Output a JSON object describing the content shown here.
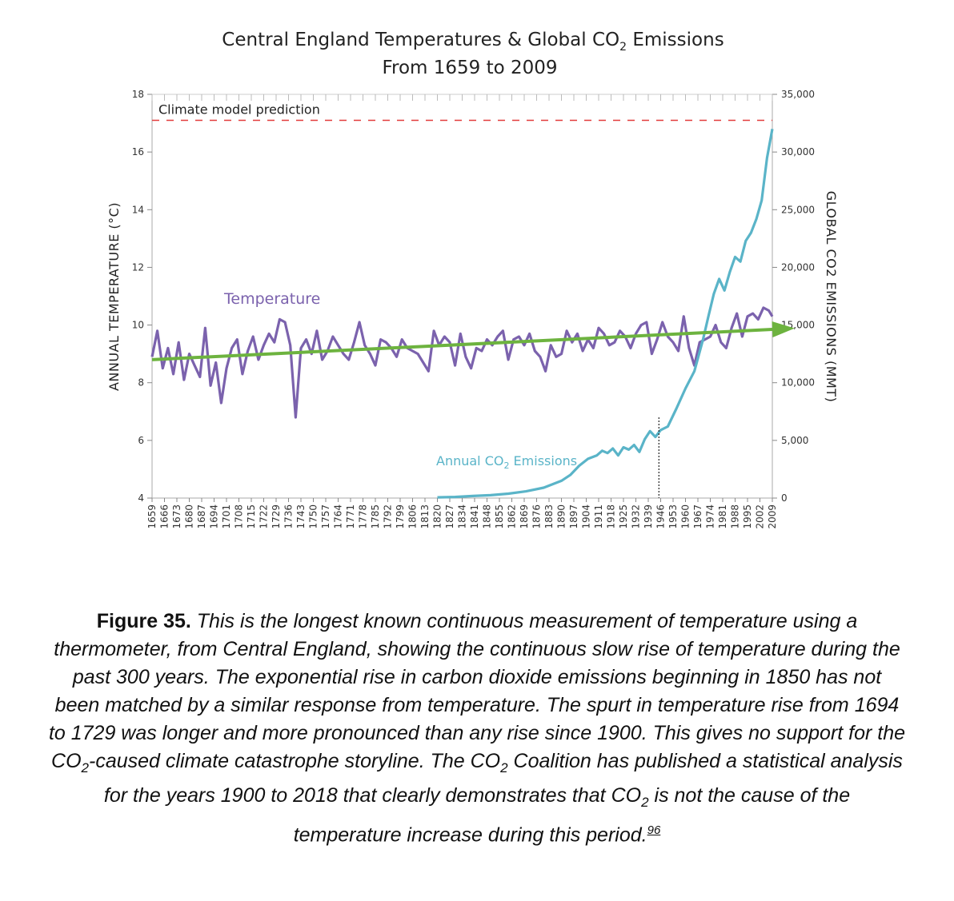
{
  "chart_data": {
    "type": "line",
    "title": "Central England Temperatures & Global CO",
    "title_sub": "2",
    "title_tail": " Emissions",
    "subtitle": "From 1659 to 2009",
    "y_left_label": "ANNUAL TEMPERATURE (°C)",
    "y_right_label": "GLOBAL CO2 EMISSIONS (MMT)",
    "y_left_range": [
      4,
      18
    ],
    "y_left_ticks": [
      "4",
      "6",
      "8",
      "10",
      "12",
      "14",
      "16",
      "18"
    ],
    "y_right_range": [
      0,
      35000
    ],
    "y_right_ticks": [
      "0",
      "5,000",
      "10,000",
      "15,000",
      "20,000",
      "25,000",
      "30,000",
      "35,000"
    ],
    "x_range": [
      1659,
      2009
    ],
    "x_ticks": [
      "1659",
      "1666",
      "1673",
      "1680",
      "1687",
      "1694",
      "1701",
      "1708",
      "1715",
      "1722",
      "1729",
      "1736",
      "1743",
      "1750",
      "1757",
      "1764",
      "1771",
      "1778",
      "1785",
      "1792",
      "1799",
      "1806",
      "1813",
      "1820",
      "1827",
      "1834",
      "1841",
      "1848",
      "1855",
      "1862",
      "1869",
      "1876",
      "1883",
      "1890",
      "1897",
      "1904",
      "1911",
      "1918",
      "1925",
      "1932",
      "1939",
      "1946",
      "1953",
      "1960",
      "1967",
      "1974",
      "1981",
      "1988",
      "1995",
      "2002",
      "2009"
    ],
    "prediction": {
      "label": "Climate model prediction",
      "value": 17.1,
      "color": "#e23b3b"
    },
    "trend": {
      "start": [
        1659,
        8.8
      ],
      "end": [
        2009,
        9.85
      ],
      "color": "#6db33f"
    },
    "marker_year": 1945,
    "temperature": {
      "name": "Temperature",
      "color": "#7b62ad",
      "x": [
        1659,
        1662,
        1665,
        1668,
        1671,
        1674,
        1677,
        1680,
        1683,
        1686,
        1689,
        1692,
        1695,
        1698,
        1701,
        1704,
        1707,
        1710,
        1713,
        1716,
        1719,
        1722,
        1725,
        1728,
        1731,
        1734,
        1737,
        1740,
        1743,
        1746,
        1749,
        1752,
        1755,
        1758,
        1761,
        1764,
        1767,
        1770,
        1773,
        1776,
        1779,
        1782,
        1785,
        1788,
        1791,
        1794,
        1797,
        1800,
        1803,
        1806,
        1809,
        1812,
        1815,
        1818,
        1821,
        1824,
        1827,
        1830,
        1833,
        1836,
        1839,
        1842,
        1845,
        1848,
        1851,
        1854,
        1857,
        1860,
        1863,
        1866,
        1869,
        1872,
        1875,
        1878,
        1881,
        1884,
        1887,
        1890,
        1893,
        1896,
        1899,
        1902,
        1905,
        1908,
        1911,
        1914,
        1917,
        1920,
        1923,
        1926,
        1929,
        1932,
        1935,
        1938,
        1941,
        1944,
        1947,
        1950,
        1953,
        1956,
        1959,
        1962,
        1965,
        1968,
        1971,
        1974,
        1977,
        1980,
        1983,
        1986,
        1989,
        1992,
        1995,
        1998,
        2001,
        2004,
        2007,
        2009
      ],
      "y": [
        8.9,
        9.8,
        8.5,
        9.2,
        8.3,
        9.4,
        8.1,
        9.0,
        8.6,
        8.2,
        9.9,
        7.9,
        8.7,
        7.3,
        8.5,
        9.2,
        9.5,
        8.3,
        9.1,
        9.6,
        8.8,
        9.3,
        9.7,
        9.4,
        10.2,
        10.1,
        9.3,
        6.8,
        9.2,
        9.5,
        9.0,
        9.8,
        8.8,
        9.1,
        9.6,
        9.3,
        9.0,
        8.8,
        9.4,
        10.1,
        9.3,
        9.0,
        8.6,
        9.5,
        9.4,
        9.2,
        8.9,
        9.5,
        9.2,
        9.1,
        9.0,
        8.7,
        8.4,
        9.8,
        9.3,
        9.6,
        9.4,
        8.6,
        9.7,
        8.9,
        8.5,
        9.2,
        9.1,
        9.5,
        9.3,
        9.6,
        9.8,
        8.8,
        9.5,
        9.6,
        9.3,
        9.7,
        9.1,
        8.9,
        8.4,
        9.3,
        8.9,
        9.0,
        9.8,
        9.4,
        9.7,
        9.1,
        9.5,
        9.2,
        9.9,
        9.7,
        9.3,
        9.4,
        9.8,
        9.6,
        9.2,
        9.7,
        10.0,
        10.1,
        9.0,
        9.5,
        10.1,
        9.6,
        9.4,
        9.1,
        10.3,
        9.2,
        8.6,
        9.4,
        9.5,
        9.6,
        10.0,
        9.4,
        9.2,
        9.9,
        10.4,
        9.6,
        10.3,
        10.4,
        10.2,
        10.6,
        10.5,
        10.3
      ]
    },
    "co2": {
      "name": "Annual CO",
      "name_sub": "2",
      "name_tail": " Emissions",
      "color": "#5ab4c8",
      "x": [
        1820,
        1830,
        1840,
        1850,
        1860,
        1870,
        1880,
        1890,
        1895,
        1900,
        1905,
        1910,
        1913,
        1916,
        1919,
        1922,
        1925,
        1928,
        1931,
        1934,
        1937,
        1940,
        1943,
        1946,
        1950,
        1955,
        1960,
        1965,
        1970,
        1973,
        1976,
        1979,
        1982,
        1985,
        1988,
        1991,
        1994,
        1997,
        2000,
        2003,
        2006,
        2009
      ],
      "y": [
        60,
        100,
        180,
        250,
        380,
        580,
        900,
        1500,
        2000,
        2800,
        3400,
        3700,
        4100,
        3900,
        4300,
        3700,
        4400,
        4200,
        4600,
        4000,
        5100,
        5800,
        5300,
        5900,
        6200,
        7800,
        9500,
        11000,
        13800,
        15800,
        17700,
        19000,
        18000,
        19600,
        20900,
        20500,
        22300,
        23000,
        24200,
        25800,
        29500,
        32000
      ]
    }
  },
  "caption": {
    "figure": "Figure 35.",
    "s1": " This is the longest known continuous measurement of temperature using a thermometer, from Central England, showing the continuous slow rise of temperature during the past 300 years. The exponential rise in carbon dioxide emissions beginning in 1850 has not been matched by a similar response from temperature. The spurt in temperature rise from 1694 to 1729 was longer and more pronounced than any rise since 1900. This gives no support for the CO",
    "sub1": "2",
    "s2": "-caused climate catastrophe storyline. The CO",
    "sub2": "2",
    "s3": " Coalition has published a statistical analysis for the years 1900 to 2018 that clearly demonstrates that CO",
    "sub3": "2",
    "s4": " is not the cause of the temperature increase during this period.",
    "ref": "96"
  }
}
